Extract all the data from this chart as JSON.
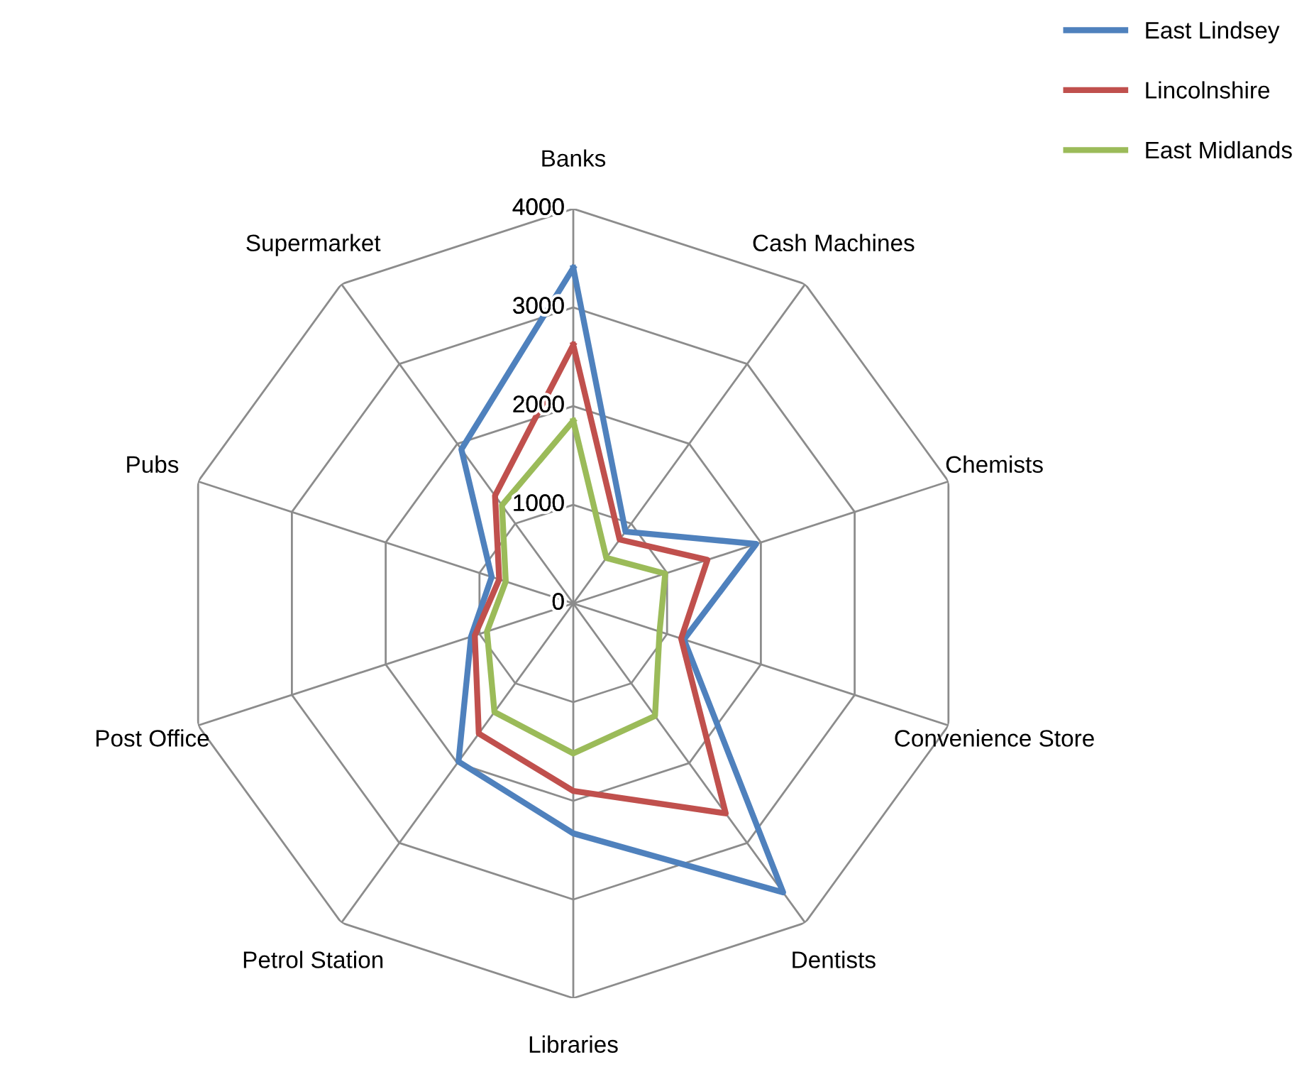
{
  "chart_data": {
    "type": "radar",
    "categories": [
      "Banks",
      "Cash Machines",
      "Chemists",
      "Convenience Store",
      "Dentists",
      "Libraries",
      "Petrol Station",
      "Post Office",
      "Pubs",
      "Supermarket"
    ],
    "series": [
      {
        "name": "East Lindsey",
        "color": "#4f81bd",
        "values": [
          3400,
          900,
          1950,
          1180,
          3620,
          2330,
          1980,
          1090,
          870,
          1930
        ]
      },
      {
        "name": "Lincolnshire",
        "color": "#c0504d",
        "values": [
          2620,
          800,
          1430,
          1150,
          2630,
          1900,
          1630,
          1050,
          790,
          1350
        ]
      },
      {
        "name": "East Midlands",
        "color": "#9bbb59",
        "values": [
          1850,
          570,
          980,
          920,
          1410,
          1520,
          1360,
          920,
          720,
          1230
        ]
      }
    ],
    "ylim": [
      0,
      4000
    ],
    "yticks": [
      0,
      1000,
      2000,
      3000,
      4000
    ],
    "grid": true,
    "legend": "top right",
    "marker": "none",
    "line_style": "solid"
  }
}
